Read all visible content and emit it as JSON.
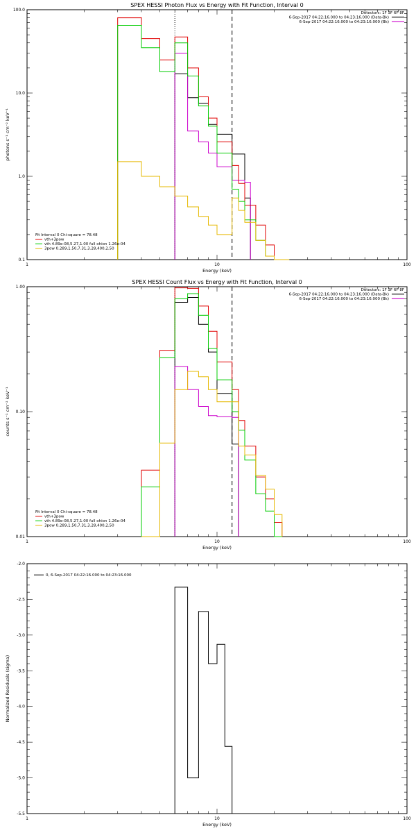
{
  "chart_data": [
    {
      "type": "line",
      "title": "SPEX HESSI Photon Flux vs Energy with Fit Function, Interval 0",
      "xlabel": "Energy (keV)",
      "ylabel": "photons s⁻¹ cm⁻² keV⁻¹",
      "x_scale": "log",
      "y_scale": "log",
      "xlim": [
        1,
        100
      ],
      "ylim": [
        0.1,
        100
      ],
      "x_ticks": [
        "1",
        "10",
        "100"
      ],
      "y_ticks": [
        "0.1",
        "1.0",
        "10.0",
        "100.0"
      ],
      "legend_top": {
        "header": "Detectors: 1F 3F 6F 8F",
        "entries": [
          {
            "label": "6-Sep-2017 04:22:16.000 to 04:23:16.000 (Data-Bk)",
            "color": "#000000"
          },
          {
            "label": "6-Sep-2017 04:22:16.000 to 04:23:16.000 (Bk)",
            "color": "#cc00cc"
          }
        ]
      },
      "fit_legend": {
        "header": "Fit Interval 0   Chi-square = 78.48",
        "entries": [
          {
            "label": "vth+3pow",
            "color": "#e00000"
          },
          {
            "label": "vth 4.89e-08,5.27,1.00  full ohion 1.26e-04",
            "color": "#00cc00"
          },
          {
            "label": "3pow 0.289,1.50,7.31,3.28,400,2.50",
            "color": "#e6b800"
          }
        ]
      },
      "vlines": [
        {
          "x": 6.0,
          "style": "dotted"
        },
        {
          "x": 12.0,
          "style": "dashed"
        }
      ],
      "edges": [
        3.0,
        3.5,
        4.0,
        4.5,
        5.0,
        5.5,
        6.0,
        6.5,
        7.0,
        7.5,
        8.0,
        8.5,
        9.0,
        9.5,
        10.0,
        11.0,
        12.0,
        13.0,
        14.0,
        15.0,
        16.0,
        17.0,
        18.0,
        19.0,
        20.0,
        22.0,
        24.0
      ],
      "series": [
        {
          "name": "vth+3pow",
          "color": "#e00000",
          "values": [
            80,
            80,
            45,
            45,
            25,
            25,
            47,
            47,
            20,
            20,
            9,
            9,
            5,
            5,
            2.6,
            2.6,
            1.35,
            0.82,
            0.45,
            0.45,
            0.26,
            0.26,
            0.15,
            0.15,
            0.1,
            0.1
          ]
        },
        {
          "name": "vth 4.89e-08,5.27,1.00  full ohion 1.26e-04",
          "color": "#00cc00",
          "values": [
            65,
            65,
            35,
            35,
            18,
            18,
            40,
            40,
            16,
            16,
            7,
            7,
            4,
            4,
            1.9,
            1.9,
            0.7,
            0.5,
            0.3,
            0.3,
            0.17,
            0.17,
            0.11,
            0.11,
            0.1,
            0.1
          ]
        },
        {
          "name": "3pow 0.289,1.50,7.31,3.28,400,2.50",
          "color": "#e6b800",
          "values": [
            1.5,
            1.5,
            1.0,
            1.0,
            0.75,
            0.75,
            0.58,
            0.58,
            0.43,
            0.43,
            0.33,
            0.33,
            0.26,
            0.26,
            0.2,
            0.2,
            0.55,
            0.39,
            0.28,
            0.28,
            0.17,
            0.17,
            0.11,
            0.11,
            0.1,
            0.1
          ]
        }
      ],
      "data_series": [
        {
          "name": "6-Sep-2017 04:22:16.000 to 04:23:16.000 (Data-Bk)",
          "color": "#000000",
          "start_edge_index": 6,
          "values": [
            17,
            17,
            8.8,
            8.8,
            7.5,
            7.5,
            4.2,
            4.2,
            3.2,
            3.2,
            1.85,
            1.85,
            0.55
          ]
        },
        {
          "name": "6-Sep-2017 04:22:16.000 to 04:23:16.000 (Bk)",
          "color": "#cc00cc",
          "start_edge_index": 6,
          "values": [
            30,
            30,
            3.5,
            3.5,
            2.6,
            2.6,
            1.9,
            1.9,
            1.3,
            1.3,
            0.9,
            0.9,
            0.85
          ]
        }
      ]
    },
    {
      "type": "line",
      "title": "SPEX HESSI Count Flux vs Energy with Fit Function, Interval 0",
      "xlabel": "Energy (keV)",
      "ylabel": "counts s⁻¹ cm⁻² keV⁻¹",
      "x_scale": "log",
      "y_scale": "log",
      "xlim": [
        1,
        100
      ],
      "ylim": [
        0.01,
        1.0
      ],
      "x_ticks": [
        "1",
        "10",
        "100"
      ],
      "y_ticks": [
        "0.01",
        "0.10",
        "1.00"
      ],
      "legend_top": {
        "header": "Detectors: 1F 3F 6F 8F",
        "entries": [
          {
            "label": "6-Sep-2017 04:22:16.000 to 04:23:16.000 (Data-Bk)",
            "color": "#000000"
          },
          {
            "label": "6-Sep-2017 04:22:16.000 to 04:23:16.000 (Bk)",
            "color": "#cc00cc"
          }
        ]
      },
      "fit_legend": {
        "header": "Fit Interval 0   Chi-square = 78.48",
        "entries": [
          {
            "label": "vth+3pow",
            "color": "#e00000"
          },
          {
            "label": "vth 4.89e-08,5.27,1.00  full ohion 1.26e-04",
            "color": "#00cc00"
          },
          {
            "label": "3pow 0.289,1.50,7.31,3.28,400,2.50",
            "color": "#e6b800"
          }
        ]
      },
      "vlines": [
        {
          "x": 6.0,
          "style": "dotted"
        },
        {
          "x": 12.0,
          "style": "dashed"
        }
      ],
      "edges": [
        4.0,
        4.5,
        5.0,
        5.5,
        6.0,
        6.5,
        7.0,
        7.5,
        8.0,
        8.5,
        9.0,
        9.5,
        10.0,
        11.0,
        12.0,
        13.0,
        14.0,
        15.0,
        16.0,
        17.0,
        18.0,
        19.0,
        20.0,
        22.0
      ],
      "series": [
        {
          "name": "vth+3pow",
          "color": "#e00000",
          "values": [
            0.034,
            0.034,
            0.31,
            0.31,
            0.98,
            0.98,
            0.97,
            0.97,
            0.7,
            0.7,
            0.44,
            0.44,
            0.25,
            0.25,
            0.15,
            0.085,
            0.053,
            0.053,
            0.03,
            0.03,
            0.02,
            0.02,
            0.013
          ]
        },
        {
          "name": "vth 4.89e-08,5.27,1.00  full ohion 1.26e-04",
          "color": "#00cc00",
          "values": [
            0.025,
            0.025,
            0.27,
            0.27,
            0.8,
            0.8,
            0.88,
            0.88,
            0.59,
            0.59,
            0.32,
            0.32,
            0.18,
            0.18,
            0.1,
            0.071,
            0.041,
            0.041,
            0.022,
            0.022,
            0.016,
            0.016,
            0.01
          ]
        },
        {
          "name": "3pow 0.289,1.50,7.31,3.28,400,2.50",
          "color": "#e6b800",
          "values": [
            0.01,
            0.01,
            0.056,
            0.056,
            0.15,
            0.15,
            0.21,
            0.21,
            0.19,
            0.19,
            0.15,
            0.15,
            0.12,
            0.12,
            0.12,
            0.053,
            0.045,
            0.045,
            0.031,
            0.031,
            0.024,
            0.024,
            0.015
          ]
        }
      ],
      "data_series": [
        {
          "name": "6-Sep-2017 04:22:16.000 to 04:23:16.000 (Data-Bk)",
          "color": "#000000",
          "start_edge_index": 4,
          "values": [
            0.75,
            0.75,
            0.82,
            0.82,
            0.5,
            0.5,
            0.3,
            0.3,
            0.14,
            0.14,
            0.055
          ]
        },
        {
          "name": "6-Sep-2017 04:22:16.000 to 04:23:16.000 (Bk)",
          "color": "#cc00cc",
          "start_edge_index": 4,
          "values": [
            0.23,
            0.23,
            0.15,
            0.15,
            0.11,
            0.11,
            0.093,
            0.093,
            0.091,
            0.091,
            0.09
          ]
        }
      ]
    },
    {
      "type": "line",
      "title": "",
      "xlabel": "Energy (keV)",
      "ylabel": "Normalized Residuals (sigma)",
      "x_scale": "log",
      "y_scale": "linear",
      "xlim": [
        1,
        100
      ],
      "ylim": [
        -5.5,
        -2.0
      ],
      "x_ticks": [
        "1",
        "10",
        "100"
      ],
      "y_ticks": [
        "-5.5",
        "-5.0",
        "-4.5",
        "-4.0",
        "-3.5",
        "-3.0",
        "-2.5",
        "-2.0"
      ],
      "legend_top": {
        "header": "",
        "entries": [
          {
            "label": "0,  6-Sep-2017 04:22:16.000 to 04:23:16.000",
            "color": "#000000"
          }
        ]
      },
      "edges": [
        6.0,
        7.0,
        8.0,
        9.0,
        10.0,
        11.0,
        12.0
      ],
      "series": [
        {
          "name": "0,  6-Sep-2017 04:22:16.000 to 04:23:16.000",
          "color": "#000000",
          "values": [
            -2.33,
            -5.0,
            -2.67,
            -3.4,
            -3.13,
            -4.56
          ]
        }
      ]
    }
  ]
}
